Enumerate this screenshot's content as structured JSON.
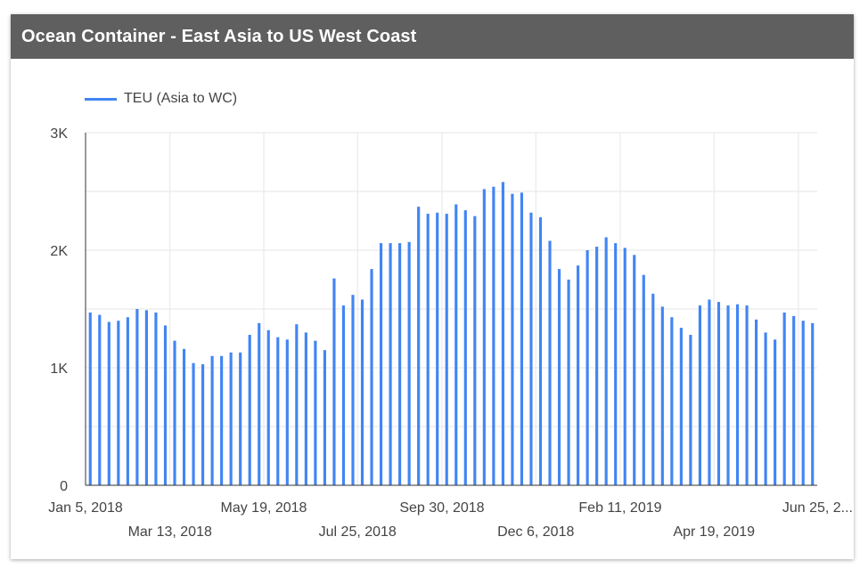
{
  "card": {
    "title": "Ocean Container - East Asia to US West Coast"
  },
  "chart_data": {
    "type": "bar",
    "series": [
      {
        "name": "TEU (Asia to WC)",
        "color": "#4285f4",
        "values": [
          1470,
          1450,
          1390,
          1400,
          1430,
          1500,
          1490,
          1470,
          1360,
          1230,
          1160,
          1040,
          1030,
          1100,
          1100,
          1130,
          1130,
          1280,
          1380,
          1320,
          1260,
          1240,
          1370,
          1300,
          1230,
          1150,
          1760,
          1530,
          1620,
          1580,
          1840,
          2060,
          2060,
          2060,
          2070,
          2370,
          2310,
          2320,
          2310,
          2390,
          2340,
          2290,
          2520,
          2540,
          2580,
          2480,
          2490,
          2320,
          2280,
          2080,
          1840,
          1750,
          1870,
          2000,
          2030,
          2110,
          2060,
          2020,
          1960,
          1790,
          1630,
          1520,
          1430,
          1340,
          1280,
          1530,
          1580,
          1560,
          1530,
          1540,
          1530,
          1410,
          1300,
          1240,
          1470,
          1440,
          1400,
          1380
        ]
      }
    ],
    "x_tick_labels_row1": [
      "Jan 5, 2018",
      "May 19, 2018",
      "Sep 30, 2018",
      "Feb 11, 2019",
      "Jun 25, 2..."
    ],
    "x_tick_labels_row2": [
      "Mar 13, 2018",
      "Jul 25, 2018",
      "Dec 6, 2018",
      "Apr 19, 2019"
    ],
    "y_ticks": [
      "0",
      "1K",
      "2K",
      "3K"
    ],
    "ylim": [
      0,
      3000
    ],
    "legend_position": "top-left",
    "grid": true
  }
}
